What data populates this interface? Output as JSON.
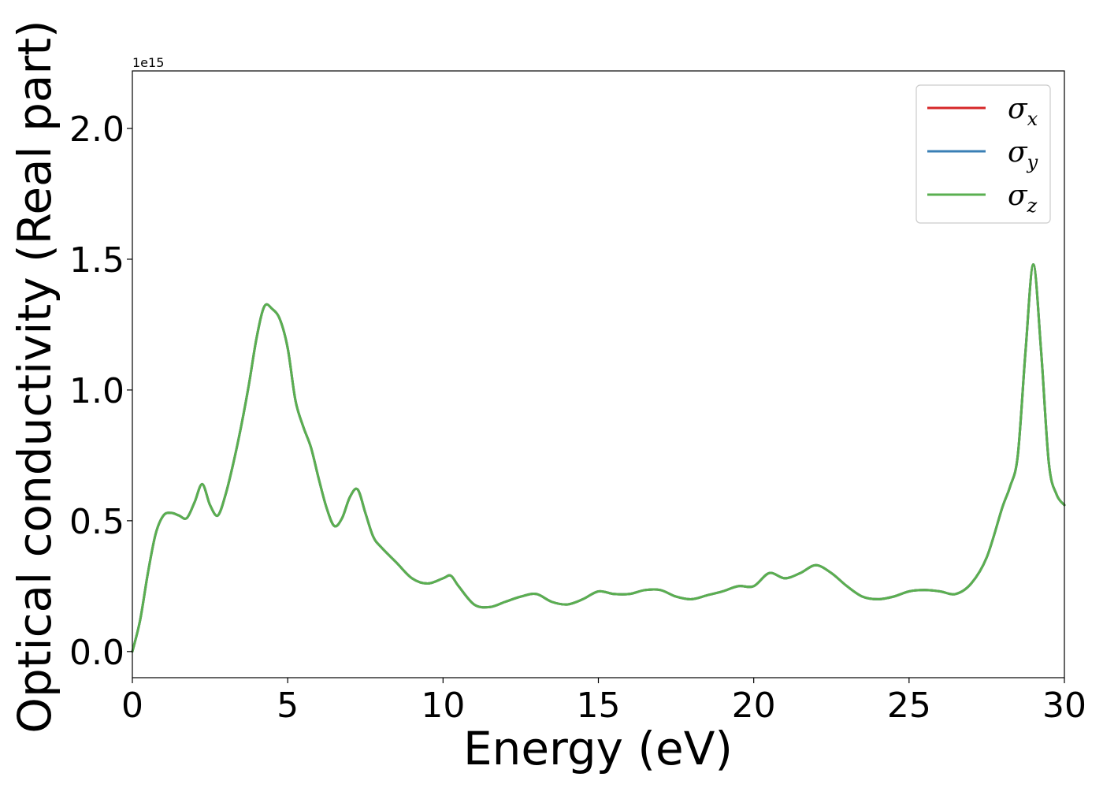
{
  "chart_data": {
    "type": "line",
    "xlabel": "Energy (eV)",
    "ylabel": "Optical conductivity (Real part)",
    "y_offset_label": "1e15",
    "xlim": [
      0,
      30
    ],
    "ylim": [
      -0.1,
      2.22
    ],
    "xticks": [
      0,
      5,
      10,
      15,
      20,
      25,
      30
    ],
    "xtick_labels": [
      "0",
      "5",
      "10",
      "15",
      "20",
      "25",
      "30"
    ],
    "yticks": [
      0.0,
      0.5,
      1.0,
      1.5,
      2.0
    ],
    "ytick_labels": [
      "0.0",
      "0.5",
      "1.0",
      "1.5",
      "2.0"
    ],
    "grid": false,
    "legend_position": "top-right",
    "legend": [
      {
        "symbol": "σ",
        "sub": "x",
        "color": "#d62728"
      },
      {
        "symbol": "σ",
        "sub": "y",
        "color": "#3a7fb5"
      },
      {
        "symbol": "σ",
        "sub": "z",
        "color": "#5aaf50"
      }
    ],
    "x": [
      0,
      0.25,
      0.5,
      0.75,
      1.0,
      1.25,
      1.5,
      1.75,
      2.0,
      2.25,
      2.5,
      2.75,
      3.0,
      3.25,
      3.5,
      3.75,
      4.0,
      4.25,
      4.5,
      4.75,
      5.0,
      5.25,
      5.5,
      5.75,
      6.0,
      6.25,
      6.5,
      6.75,
      7.0,
      7.25,
      7.5,
      7.75,
      8.0,
      8.5,
      9.0,
      9.5,
      10.0,
      10.25,
      10.5,
      11.0,
      11.5,
      12.0,
      12.5,
      13.0,
      13.5,
      14.0,
      14.5,
      15.0,
      15.5,
      16.0,
      16.5,
      17.0,
      17.5,
      18.0,
      18.5,
      19.0,
      19.5,
      20.0,
      20.5,
      21.0,
      21.5,
      22.0,
      22.5,
      23.0,
      23.5,
      24.0,
      24.5,
      25.0,
      25.5,
      26.0,
      26.5,
      27.0,
      27.5,
      28.0,
      28.25,
      28.5,
      28.75,
      29.0,
      29.25,
      29.5,
      29.75,
      30.0
    ],
    "series": [
      {
        "name": "σx",
        "color": "#d62728",
        "values": [
          0.0,
          0.12,
          0.3,
          0.45,
          0.52,
          0.53,
          0.52,
          0.51,
          0.57,
          0.64,
          0.56,
          0.52,
          0.6,
          0.72,
          0.86,
          1.02,
          1.2,
          1.32,
          1.31,
          1.27,
          1.16,
          0.96,
          0.86,
          0.78,
          0.66,
          0.55,
          0.48,
          0.51,
          0.59,
          0.62,
          0.53,
          0.44,
          0.4,
          0.34,
          0.28,
          0.26,
          0.28,
          0.29,
          0.25,
          0.18,
          0.17,
          0.19,
          0.21,
          0.22,
          0.19,
          0.18,
          0.2,
          0.23,
          0.22,
          0.22,
          0.235,
          0.235,
          0.21,
          0.2,
          0.215,
          0.23,
          0.25,
          0.25,
          0.3,
          0.28,
          0.3,
          0.33,
          0.3,
          0.25,
          0.21,
          0.2,
          0.21,
          0.23,
          0.235,
          0.23,
          0.22,
          0.26,
          0.36,
          0.55,
          0.63,
          0.75,
          1.15,
          1.48,
          1.15,
          0.72,
          0.6,
          0.56
        ]
      },
      {
        "name": "σy",
        "color": "#3a7fb5",
        "values": [
          0.0,
          0.12,
          0.3,
          0.45,
          0.52,
          0.53,
          0.52,
          0.51,
          0.57,
          0.64,
          0.56,
          0.52,
          0.6,
          0.72,
          0.86,
          1.02,
          1.2,
          1.32,
          1.31,
          1.27,
          1.16,
          0.96,
          0.86,
          0.78,
          0.66,
          0.55,
          0.48,
          0.51,
          0.59,
          0.62,
          0.53,
          0.44,
          0.4,
          0.34,
          0.28,
          0.26,
          0.28,
          0.29,
          0.25,
          0.18,
          0.17,
          0.19,
          0.21,
          0.22,
          0.19,
          0.18,
          0.2,
          0.23,
          0.22,
          0.22,
          0.235,
          0.235,
          0.21,
          0.2,
          0.215,
          0.23,
          0.25,
          0.25,
          0.3,
          0.28,
          0.3,
          0.33,
          0.3,
          0.25,
          0.21,
          0.2,
          0.21,
          0.23,
          0.235,
          0.23,
          0.22,
          0.26,
          0.36,
          0.55,
          0.63,
          0.75,
          1.15,
          1.48,
          1.15,
          0.72,
          0.6,
          0.56
        ]
      },
      {
        "name": "σz",
        "color": "#5aaf50",
        "values": [
          0.0,
          0.12,
          0.3,
          0.45,
          0.52,
          0.53,
          0.52,
          0.51,
          0.57,
          0.64,
          0.56,
          0.52,
          0.6,
          0.72,
          0.86,
          1.02,
          1.2,
          1.32,
          1.31,
          1.27,
          1.16,
          0.96,
          0.86,
          0.78,
          0.66,
          0.55,
          0.48,
          0.51,
          0.59,
          0.62,
          0.53,
          0.44,
          0.4,
          0.34,
          0.28,
          0.26,
          0.28,
          0.29,
          0.25,
          0.18,
          0.17,
          0.19,
          0.21,
          0.22,
          0.19,
          0.18,
          0.2,
          0.23,
          0.22,
          0.22,
          0.235,
          0.235,
          0.21,
          0.2,
          0.215,
          0.23,
          0.25,
          0.25,
          0.3,
          0.28,
          0.3,
          0.33,
          0.3,
          0.25,
          0.21,
          0.2,
          0.21,
          0.23,
          0.235,
          0.23,
          0.22,
          0.26,
          0.36,
          0.55,
          0.63,
          0.75,
          1.15,
          1.48,
          1.15,
          0.72,
          0.6,
          0.56
        ]
      }
    ]
  }
}
